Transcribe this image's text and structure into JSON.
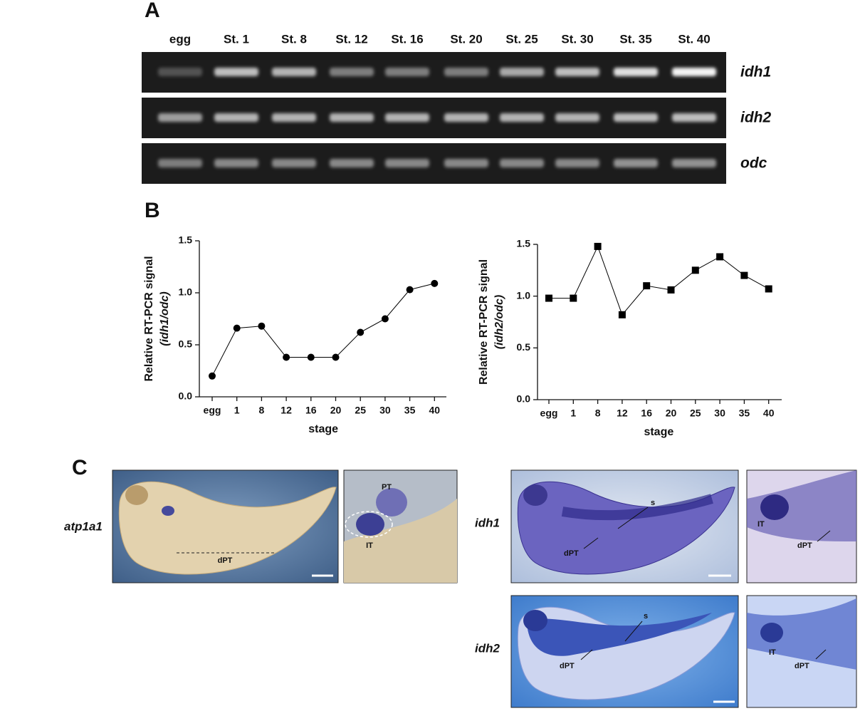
{
  "panel_a": {
    "label": "A",
    "lanes": [
      "egg",
      "St. 1",
      "St. 8",
      "St. 12",
      "St. 16",
      "St. 20",
      "St. 25",
      "St. 30",
      "St. 35",
      "St. 40"
    ],
    "genes": [
      "idh1",
      "idh2",
      "odc"
    ]
  },
  "panel_b_label": "B",
  "chart_data": [
    {
      "type": "line",
      "y_label": [
        "Relative RT-PCR signal",
        "(idh1/odc)"
      ],
      "x_label": "stage",
      "categories": [
        "egg",
        "1",
        "8",
        "12",
        "16",
        "20",
        "25",
        "30",
        "35",
        "40"
      ],
      "values": [
        0.2,
        0.66,
        0.68,
        0.38,
        0.38,
        0.38,
        0.62,
        0.75,
        1.03,
        1.09
      ],
      "marker": "circle",
      "color": "#000000",
      "ylim": [
        0,
        1.5
      ],
      "yticks": [
        {
          "value": 0,
          "label": "0.0"
        },
        0.5,
        {
          "value": 1,
          "label": "1.0"
        },
        1.5
      ]
    },
    {
      "type": "line",
      "y_label": [
        "Relative RT-PCR signal",
        "(idh2/odc)"
      ],
      "x_label": "stage",
      "categories": [
        "egg",
        "1",
        "8",
        "12",
        "16",
        "20",
        "25",
        "30",
        "35",
        "40"
      ],
      "values": [
        0.98,
        0.98,
        1.48,
        0.82,
        1.1,
        1.06,
        1.25,
        1.38,
        1.2,
        1.07
      ],
      "marker": "square",
      "color": "#000000",
      "ylim": [
        0,
        1.5
      ],
      "yticks": [
        {
          "value": 0,
          "label": "0.0"
        },
        0.5,
        {
          "value": 1,
          "label": "1.0"
        },
        1.5
      ]
    }
  ],
  "panel_c": {
    "label": "C",
    "rows": [
      {
        "gene": "atp1a1",
        "annotations": [
          "dPT",
          "PT",
          "IT"
        ]
      },
      {
        "gene": "idh1",
        "annotations": [
          "s",
          "dPT",
          "IT",
          "dPT"
        ]
      },
      {
        "gene": "idh2",
        "annotations": [
          "s",
          "dPT",
          "IT",
          "dPT"
        ]
      }
    ]
  }
}
